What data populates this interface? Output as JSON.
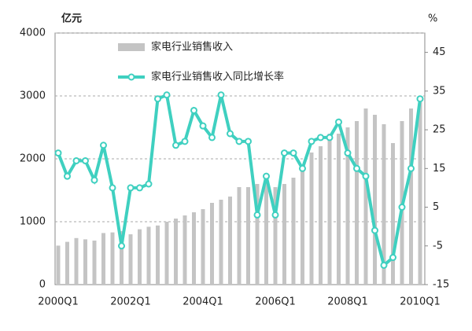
{
  "chart_data": {
    "type": "bar-line",
    "y_label": "亿元",
    "y2_label": "%",
    "categories": [
      "2000Q1",
      null,
      null,
      null,
      null,
      null,
      null,
      null,
      "2002Q1",
      null,
      null,
      null,
      null,
      null,
      null,
      null,
      "2004Q1",
      null,
      null,
      null,
      null,
      null,
      null,
      null,
      "2006Q1",
      null,
      null,
      null,
      null,
      null,
      null,
      null,
      "2008Q1",
      null,
      null,
      null,
      null,
      null,
      null,
      null,
      "2010Q1"
    ],
    "series": [
      {
        "name": "家电行业销售收入",
        "color": "#c4c4c4",
        "type": "bar",
        "values": [
          620,
          680,
          740,
          720,
          700,
          820,
          830,
          850,
          800,
          880,
          920,
          940,
          1000,
          1050,
          1100,
          1150,
          1200,
          1300,
          1350,
          1400,
          1550,
          1550,
          1600,
          1650,
          1550,
          1600,
          1700,
          1900,
          2100,
          2200,
          2400,
          2400,
          2500,
          2600,
          2800,
          2700,
          2550,
          2250,
          2600,
          2800,
          2900
        ]
      },
      {
        "name": "家电行业销售收入同比增长率",
        "color": "#3fd0c0",
        "type": "line",
        "axis": "y2",
        "values": [
          19,
          13,
          17,
          17,
          12,
          21,
          10,
          -5,
          10,
          10,
          11,
          33,
          34,
          21,
          22,
          30,
          26,
          23,
          34,
          24,
          22,
          22,
          3,
          13,
          3,
          19,
          19,
          15,
          22,
          23,
          23,
          27,
          19,
          15,
          13,
          -1,
          -10,
          -8,
          5,
          15,
          33
        ]
      }
    ],
    "ylim": [
      0,
      4000
    ],
    "yticks": [
      0,
      1000,
      2000,
      3000,
      4000
    ],
    "y2lim": [
      -15,
      50
    ],
    "y2ticks": [
      -15,
      -5,
      5,
      15,
      25,
      35,
      45
    ],
    "grid": true,
    "legend": "top"
  }
}
